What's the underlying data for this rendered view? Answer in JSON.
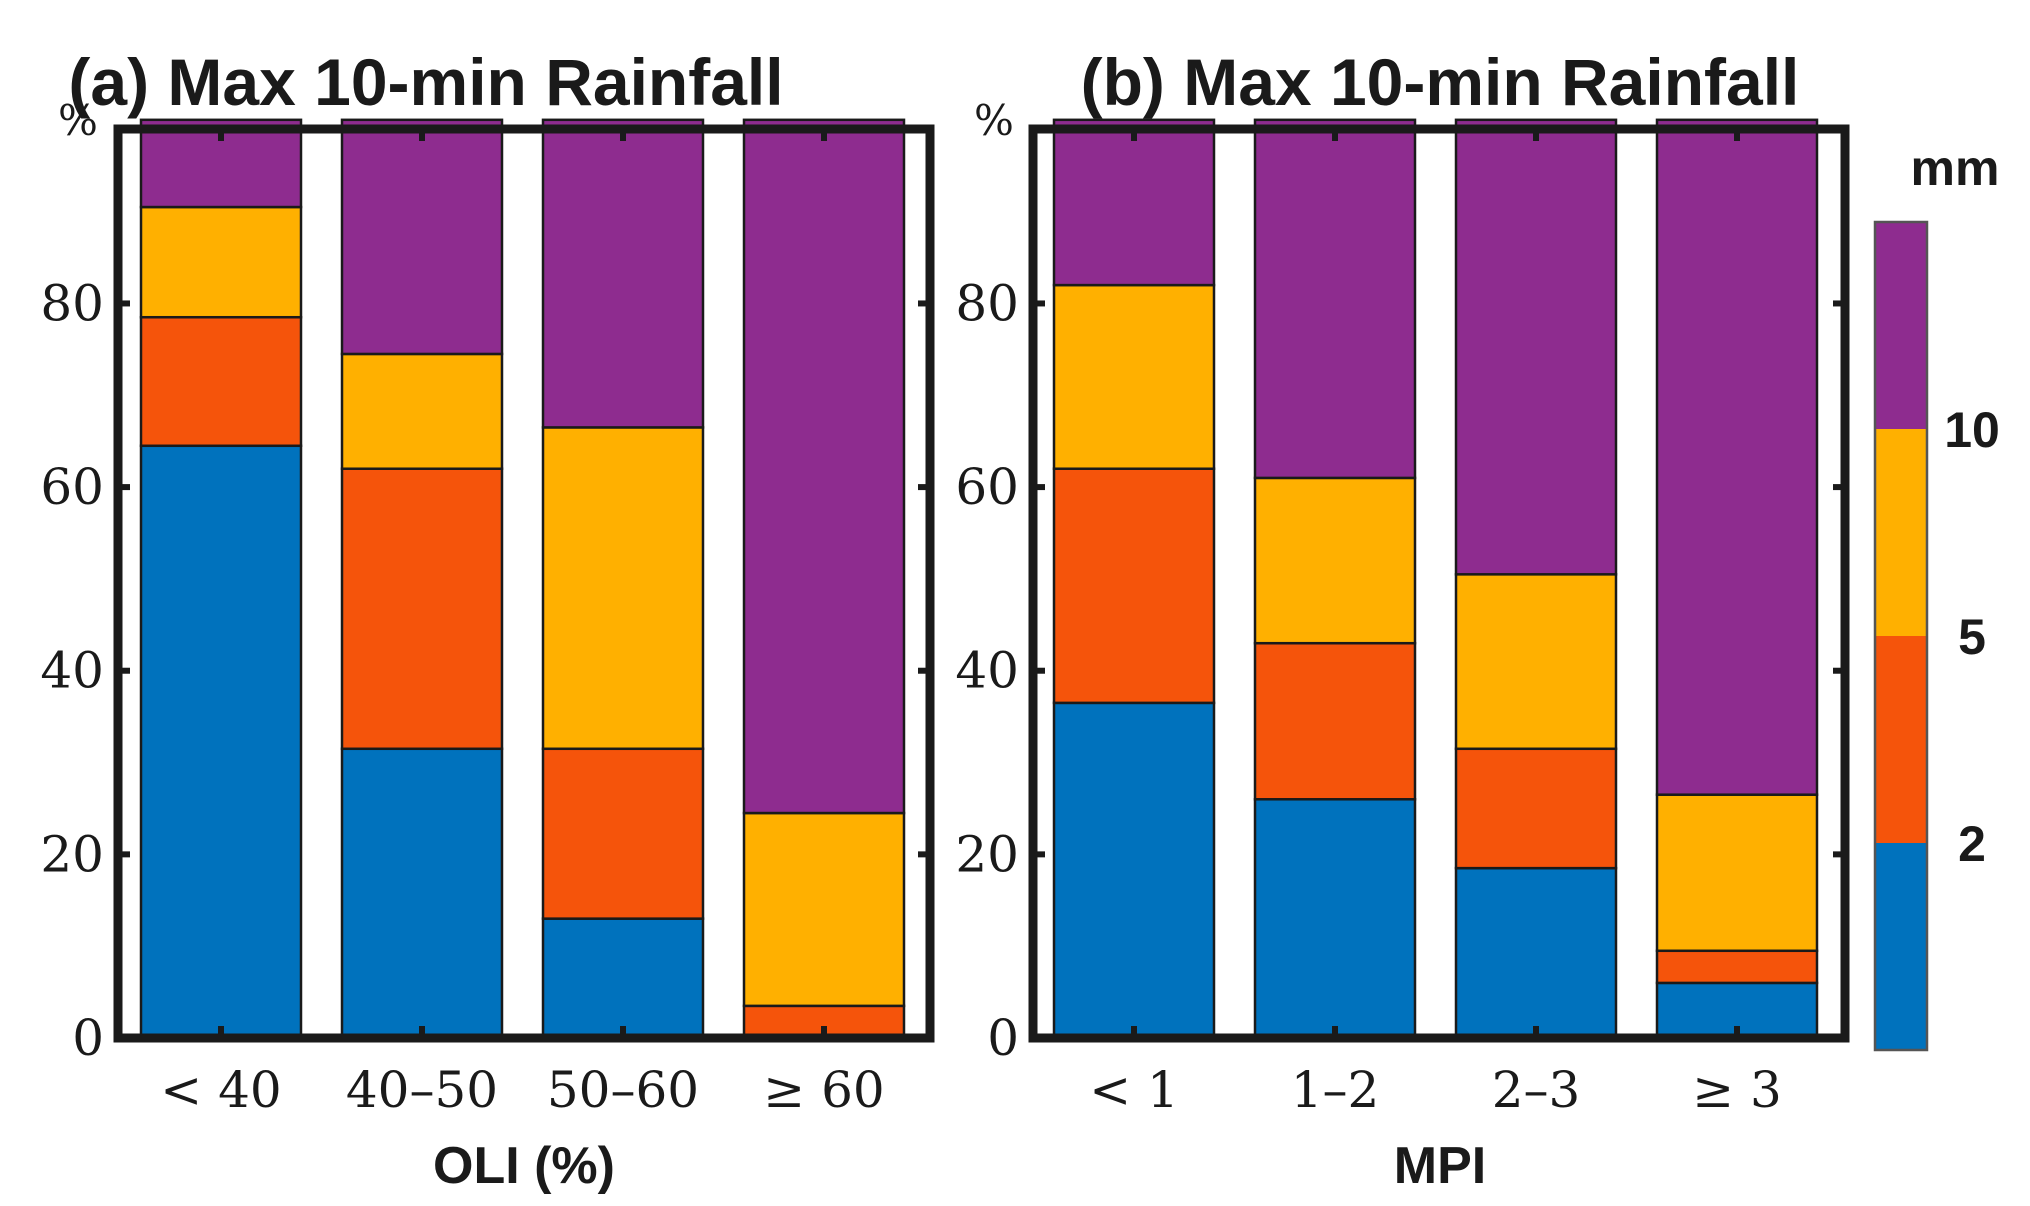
{
  "colorbar": {
    "unit_label": "mm",
    "bins": [
      "<2",
      "2-5",
      "5-10",
      ">10"
    ],
    "tick_labels": [
      "2",
      "5",
      "10"
    ],
    "colors": [
      "#0072BD",
      "#F5540B",
      "#FFB000",
      "#8E2C8F"
    ]
  },
  "chart_data": [
    {
      "type": "bar",
      "stacked": true,
      "title": "(a) Max 10-min Rainfall",
      "xlabel": "OLI (%)",
      "ylabel": "%",
      "categories": [
        "< 40",
        "40–50",
        "50–60",
        "≥ 60"
      ],
      "ylim": [
        0,
        99
      ],
      "yticks": [
        0,
        20,
        40,
        60,
        80
      ],
      "series": [
        {
          "name": "<2 mm",
          "values": [
            64.5,
            31.5,
            13.0,
            0
          ]
        },
        {
          "name": "2-5 mm",
          "values": [
            14.0,
            30.5,
            18.5,
            3.5
          ]
        },
        {
          "name": "5-10 mm",
          "values": [
            12.0,
            12.5,
            35.0,
            21.0
          ]
        },
        {
          "name": ">10 mm",
          "values": [
            9.5,
            25.5,
            33.5,
            75.5
          ]
        }
      ]
    },
    {
      "type": "bar",
      "stacked": true,
      "title": "(b) Max 10-min Rainfall",
      "xlabel": "MPI",
      "ylabel": "%",
      "categories": [
        "< 1",
        "1–2",
        "2–3",
        "≥ 3"
      ],
      "ylim": [
        0,
        99
      ],
      "yticks": [
        0,
        20,
        40,
        60,
        80
      ],
      "series": [
        {
          "name": "<2 mm",
          "values": [
            36.5,
            26.0,
            18.5,
            6.0
          ]
        },
        {
          "name": "2-5 mm",
          "values": [
            25.5,
            17.0,
            13.0,
            3.5
          ]
        },
        {
          "name": "5-10 mm",
          "values": [
            20.0,
            18.0,
            19.0,
            17.0
          ]
        },
        {
          "name": ">10 mm",
          "values": [
            18.0,
            39.0,
            49.5,
            73.5
          ]
        }
      ]
    }
  ]
}
